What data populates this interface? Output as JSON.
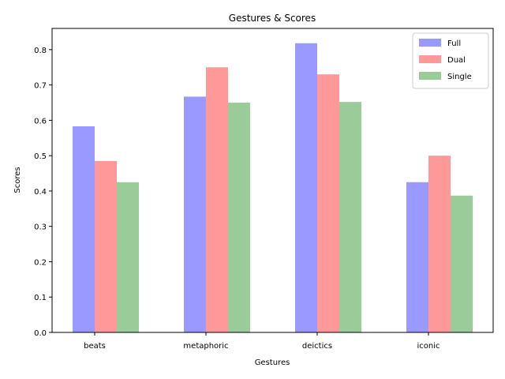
{
  "chart_data": {
    "type": "bar",
    "title": "Gestures & Scores",
    "xlabel": "Gestures",
    "ylabel": "Scores",
    "categories": [
      "beats",
      "metaphoric",
      "deictics",
      "iconic"
    ],
    "series": [
      {
        "name": "Full",
        "color": "#9999ff",
        "values": [
          0.583,
          0.667,
          0.818,
          0.425
        ]
      },
      {
        "name": "Dual",
        "color": "#ff9999",
        "values": [
          0.485,
          0.75,
          0.73,
          0.5
        ]
      },
      {
        "name": "Single",
        "color": "#99cc99",
        "values": [
          0.425,
          0.65,
          0.652,
          0.387
        ]
      }
    ],
    "ylim": [
      0,
      0.86
    ],
    "yticks": [
      0.0,
      0.1,
      0.2,
      0.3,
      0.4,
      0.5,
      0.6,
      0.7,
      0.8
    ],
    "ytick_labels": [
      "0.0",
      "0.1",
      "0.2",
      "0.3",
      "0.4",
      "0.5",
      "0.6",
      "0.7",
      "0.8"
    ],
    "grid": false,
    "legend_position": "top-right"
  }
}
